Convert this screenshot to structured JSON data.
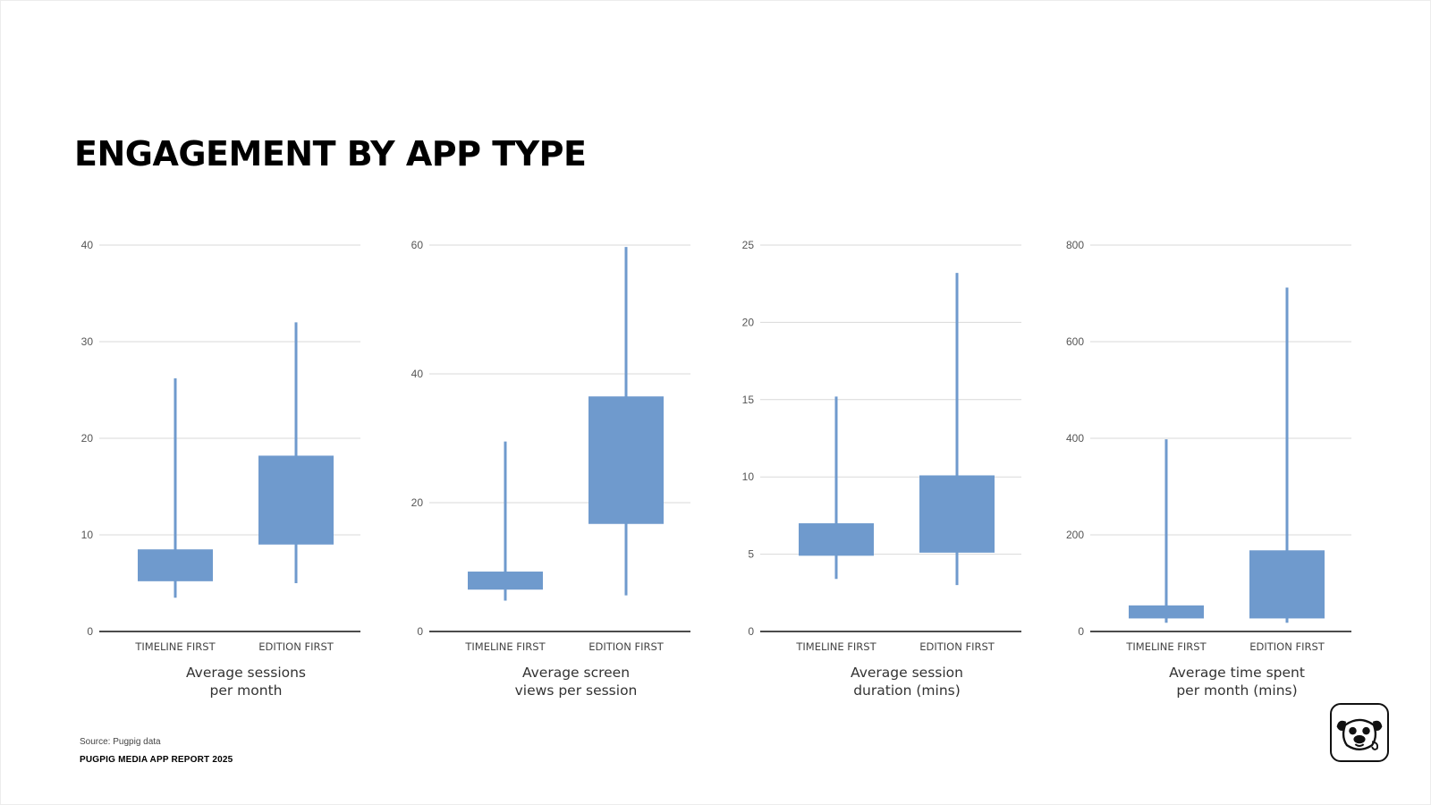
{
  "title": "ENGAGEMENT BY APP TYPE",
  "footer": {
    "source": "Source: Pugpig data",
    "report": "PUGPIG MEDIA APP REPORT 2025"
  },
  "logo_icon": "pug-dog-icon",
  "colors": {
    "box": "#6f9acd",
    "grid": "#d9d9d9",
    "axis": "#111111"
  },
  "chart_data": [
    {
      "type": "candlestick",
      "caption": [
        "Average sessions",
        "per month"
      ],
      "categories": [
        "TIMELINE FIRST",
        "EDITION FIRST"
      ],
      "ylim": [
        0,
        40
      ],
      "yticks": [
        0,
        10,
        20,
        30,
        40
      ],
      "boxes": [
        {
          "category": "TIMELINE FIRST",
          "low": 3.5,
          "q1": 5.2,
          "q3": 8.5,
          "high": 26.2
        },
        {
          "category": "EDITION FIRST",
          "low": 5.0,
          "q1": 9.0,
          "q3": 18.2,
          "high": 32.0
        }
      ]
    },
    {
      "type": "candlestick",
      "caption": [
        "Average screen",
        "views per session"
      ],
      "categories": [
        "TIMELINE FIRST",
        "EDITION FIRST"
      ],
      "ylim": [
        0,
        60
      ],
      "yticks": [
        0,
        20,
        40,
        60
      ],
      "boxes": [
        {
          "category": "TIMELINE FIRST",
          "low": 4.8,
          "q1": 6.5,
          "q3": 9.3,
          "high": 29.5
        },
        {
          "category": "EDITION FIRST",
          "low": 5.6,
          "q1": 16.7,
          "q3": 36.5,
          "high": 59.7
        }
      ]
    },
    {
      "type": "candlestick",
      "caption": [
        "Average session",
        "duration (mins)"
      ],
      "categories": [
        "TIMELINE FIRST",
        "EDITION FIRST"
      ],
      "ylim": [
        0,
        25
      ],
      "yticks": [
        0,
        5,
        10,
        15,
        20,
        25
      ],
      "boxes": [
        {
          "category": "TIMELINE FIRST",
          "low": 3.4,
          "q1": 4.9,
          "q3": 7.0,
          "high": 15.2
        },
        {
          "category": "EDITION FIRST",
          "low": 3.0,
          "q1": 5.1,
          "q3": 10.1,
          "high": 23.2
        }
      ]
    },
    {
      "type": "candlestick",
      "caption": [
        "Average time spent",
        "per month (mins)"
      ],
      "categories": [
        "TIMELINE FIRST",
        "EDITION FIRST"
      ],
      "ylim": [
        0,
        800
      ],
      "yticks": [
        0,
        200,
        400,
        600,
        800
      ],
      "boxes": [
        {
          "category": "TIMELINE FIRST",
          "low": 18,
          "q1": 27,
          "q3": 54,
          "high": 398
        },
        {
          "category": "EDITION FIRST",
          "low": 18,
          "q1": 27,
          "q3": 168,
          "high": 712
        }
      ]
    }
  ]
}
